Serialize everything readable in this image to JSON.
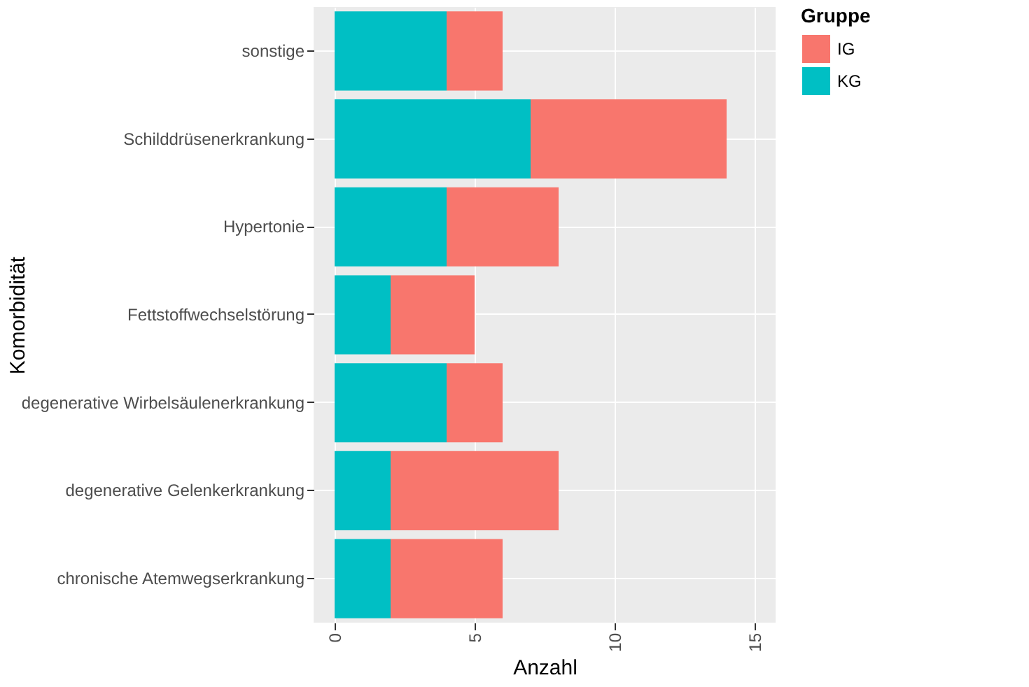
{
  "chart_data": {
    "type": "bar",
    "orientation": "horizontal",
    "stacked": true,
    "xlabel": "Anzahl",
    "ylabel": "Komorbidität",
    "legend_title": "Gruppe",
    "legend": "right",
    "grid": true,
    "categories": [
      "sonstige",
      "Schilddrüsenerkrankung",
      "Hypertonie",
      "Fettstoffwechselstörung",
      "degenerative Wirbelsäulenerkrankung",
      "degenerative Gelenkerkrankung",
      "chronische Atemwegserkrankung"
    ],
    "series": [
      {
        "name": "KG",
        "color": "#00bfc4",
        "values": [
          4,
          7,
          4,
          2,
          4,
          2,
          2
        ]
      },
      {
        "name": "IG",
        "color": "#f8766d",
        "values": [
          2,
          7,
          4,
          3,
          2,
          6,
          4
        ]
      }
    ],
    "xlim": [
      -0.75,
      15.75
    ],
    "xticks": [
      0,
      5,
      10,
      15
    ]
  }
}
